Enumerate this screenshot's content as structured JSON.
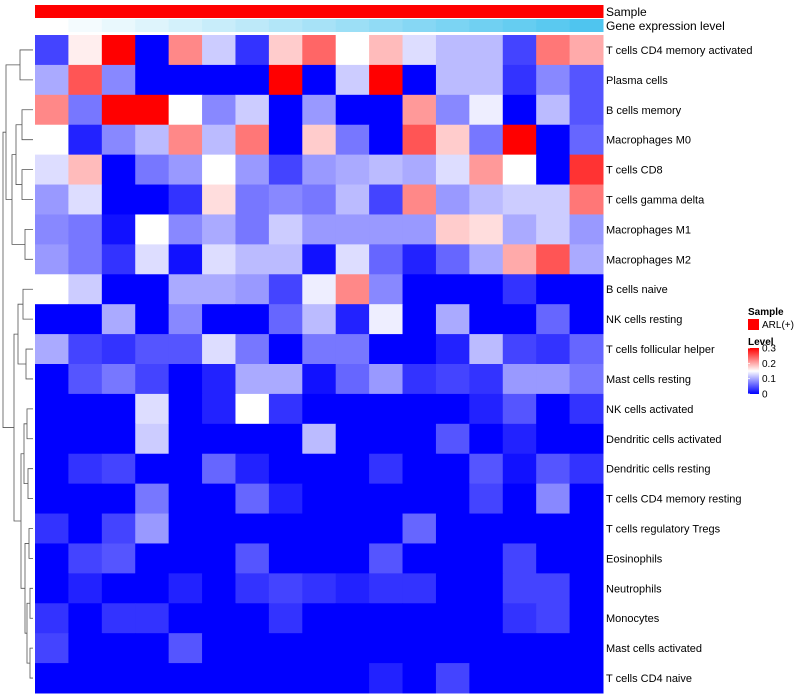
{
  "chart_data": {
    "type": "heatmap",
    "annotation_rows": [
      {
        "name": "Sample",
        "legend_label": "ARL(+)",
        "color": "#ff0000"
      },
      {
        "name": "Gene expression level"
      }
    ],
    "rows": [
      "T cells CD4 memory activated",
      "Plasma cells",
      "B cells memory",
      "Macrophages M0",
      "T cells CD8",
      "T cells gamma delta",
      "Macrophages M1",
      "Macrophages M2",
      "B cells naive",
      "NK cells resting",
      "T cells follicular helper",
      "Mast cells resting",
      "NK cells activated",
      "Dendritic cells activated",
      "Dendritic cells resting",
      "T cells CD4 memory resting",
      "T cells regulatory  Tregs",
      "Eosinophils",
      "Neutrophils",
      "Monocytes",
      "Mast cells activated",
      "T cells CD4 naive"
    ],
    "values": [
      [
        0.04,
        0.16,
        0.3,
        0.0,
        0.22,
        0.12,
        0.03,
        0.18,
        0.24,
        0.15,
        0.19,
        0.13,
        0.11,
        0.11,
        0.04,
        0.23,
        0.2
      ],
      [
        0.1,
        0.25,
        0.08,
        0.0,
        0.0,
        0.0,
        0.0,
        0.3,
        0.0,
        0.12,
        0.3,
        0.0,
        0.11,
        0.11,
        0.03,
        0.08,
        0.05
      ],
      [
        0.22,
        0.07,
        0.3,
        0.3,
        0.15,
        0.08,
        0.12,
        0.0,
        0.09,
        0.0,
        0.0,
        0.21,
        0.08,
        0.14,
        0.0,
        0.11,
        0.05
      ],
      [
        0.15,
        0.02,
        0.08,
        0.11,
        0.22,
        0.11,
        0.23,
        0.0,
        0.18,
        0.07,
        0.0,
        0.25,
        0.18,
        0.07,
        0.3,
        0.0,
        0.06
      ],
      [
        0.13,
        0.19,
        0.0,
        0.07,
        0.09,
        0.15,
        0.09,
        0.04,
        0.09,
        0.1,
        0.11,
        0.1,
        0.13,
        0.21,
        0.15,
        0.0,
        0.27
      ],
      [
        0.09,
        0.13,
        0.0,
        0.0,
        0.03,
        0.17,
        0.07,
        0.08,
        0.07,
        0.11,
        0.04,
        0.22,
        0.09,
        0.11,
        0.12,
        0.12,
        0.23
      ],
      [
        0.08,
        0.07,
        0.01,
        0.15,
        0.08,
        0.1,
        0.07,
        0.12,
        0.09,
        0.09,
        0.09,
        0.09,
        0.18,
        0.17,
        0.1,
        0.12,
        0.09
      ],
      [
        0.09,
        0.07,
        0.03,
        0.13,
        0.01,
        0.13,
        0.11,
        0.11,
        0.01,
        0.13,
        0.06,
        0.02,
        0.06,
        0.1,
        0.2,
        0.25,
        0.1
      ],
      [
        0.15,
        0.12,
        0.0,
        0.0,
        0.1,
        0.1,
        0.09,
        0.04,
        0.14,
        0.22,
        0.08,
        0.0,
        0.0,
        0.0,
        0.03,
        0.0,
        0.0
      ],
      [
        0.0,
        0.0,
        0.1,
        0.0,
        0.08,
        0.0,
        0.0,
        0.06,
        0.11,
        0.02,
        0.14,
        0.0,
        0.1,
        0.0,
        0.0,
        0.06,
        0.0
      ],
      [
        0.1,
        0.04,
        0.03,
        0.05,
        0.05,
        0.13,
        0.07,
        0.0,
        0.07,
        0.07,
        0.0,
        0.0,
        0.02,
        0.11,
        0.04,
        0.03,
        0.06
      ],
      [
        0.0,
        0.05,
        0.07,
        0.04,
        0.0,
        0.02,
        0.1,
        0.1,
        0.01,
        0.06,
        0.09,
        0.03,
        0.04,
        0.03,
        0.09,
        0.09,
        0.07
      ],
      [
        0.0,
        0.0,
        0.0,
        0.13,
        0.0,
        0.02,
        0.15,
        0.03,
        0.0,
        0.0,
        0.0,
        0.0,
        0.0,
        0.02,
        0.05,
        0.0,
        0.03
      ],
      [
        0.0,
        0.0,
        0.0,
        0.12,
        0.0,
        0.0,
        0.0,
        0.0,
        0.11,
        0.0,
        0.0,
        0.0,
        0.05,
        0.0,
        0.02,
        0.0,
        0.0
      ],
      [
        0.0,
        0.03,
        0.04,
        0.0,
        0.0,
        0.06,
        0.02,
        0.0,
        0.0,
        0.0,
        0.03,
        0.0,
        0.0,
        0.05,
        0.01,
        0.05,
        0.03
      ],
      [
        0.0,
        0.0,
        0.0,
        0.07,
        0.0,
        0.0,
        0.06,
        0.02,
        0.0,
        0.0,
        0.0,
        0.0,
        0.0,
        0.04,
        0.0,
        0.08,
        0.0
      ],
      [
        0.03,
        0.0,
        0.04,
        0.09,
        0.0,
        0.0,
        0.0,
        0.0,
        0.0,
        0.0,
        0.0,
        0.06,
        0.0,
        0.0,
        0.0,
        0.0,
        0.0
      ],
      [
        0.0,
        0.04,
        0.05,
        0.0,
        0.0,
        0.0,
        0.05,
        0.0,
        0.0,
        0.0,
        0.05,
        0.0,
        0.0,
        0.0,
        0.04,
        0.0,
        0.0
      ],
      [
        0.0,
        0.02,
        0.0,
        0.0,
        0.02,
        0.0,
        0.03,
        0.04,
        0.03,
        0.02,
        0.03,
        0.03,
        0.0,
        0.0,
        0.04,
        0.04,
        0.0
      ],
      [
        0.03,
        0.0,
        0.03,
        0.03,
        0.0,
        0.0,
        0.0,
        0.03,
        0.0,
        0.0,
        0.0,
        0.0,
        0.0,
        0.0,
        0.03,
        0.04,
        0.0
      ],
      [
        0.04,
        0.0,
        0.0,
        0.0,
        0.05,
        0.0,
        0.0,
        0.0,
        0.0,
        0.0,
        0.0,
        0.0,
        0.0,
        0.0,
        0.0,
        0.0,
        0.0
      ],
      [
        0.0,
        0.0,
        0.0,
        0.0,
        0.0,
        0.0,
        0.0,
        0.0,
        0.0,
        0.0,
        0.02,
        0.0,
        0.04,
        0.0,
        0.0,
        0.0,
        0.0
      ]
    ],
    "gene_expression_level": [
      0.0,
      0.06,
      0.12,
      0.18,
      0.24,
      0.3,
      0.36,
      0.42,
      0.48,
      0.54,
      0.6,
      0.66,
      0.72,
      0.78,
      0.84,
      0.9,
      0.96
    ],
    "color_scale": {
      "low": "#0000ff",
      "mid": "#ffffff",
      "high": "#ff0000",
      "min": 0,
      "mid_value": 0.15,
      "max": 0.3
    },
    "legend": {
      "sample_title": "Sample",
      "level_title": "Level",
      "level_ticks": [
        0.3,
        0.2,
        0.1,
        0
      ],
      "level_tick_labels": [
        "0.3",
        "0.2",
        "0.1",
        "0"
      ]
    },
    "dendrogram": "rows"
  }
}
